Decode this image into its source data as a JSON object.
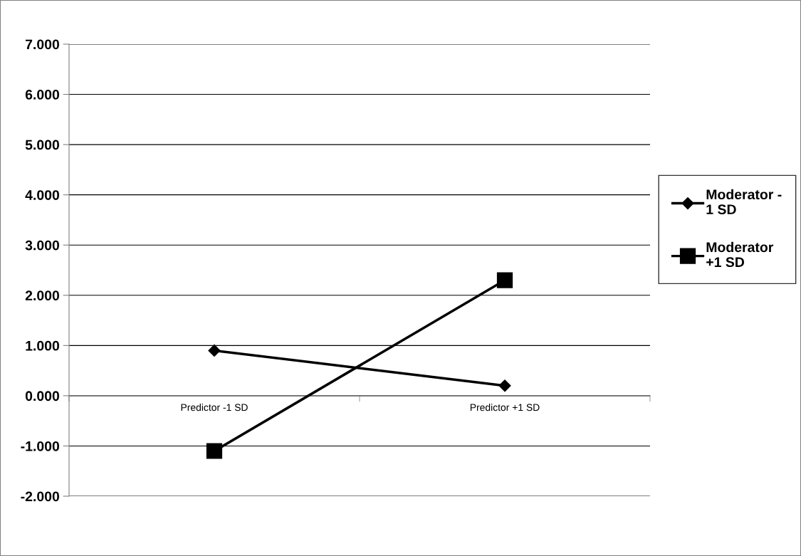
{
  "chart_data": {
    "type": "line",
    "categories": [
      "Predictor -1 SD",
      "Predictor +1 SD"
    ],
    "series": [
      {
        "name": "Moderator -\n1 SD",
        "color": "#000000",
        "values": [
          0.9,
          0.2
        ],
        "marker": "diamond"
      },
      {
        "name": "Moderator\n+1 SD",
        "color": "#000000",
        "values": [
          -1.1,
          2.3
        ],
        "marker": "square"
      }
    ],
    "ylim": [
      -2,
      7
    ],
    "yticks": [
      {
        "value": -2,
        "label": "-2.000"
      },
      {
        "value": -1,
        "label": "-1.000"
      },
      {
        "value": 0,
        "label": "0.000"
      },
      {
        "value": 1,
        "label": "1.000"
      },
      {
        "value": 2,
        "label": "2.000"
      },
      {
        "value": 3,
        "label": "3.000"
      },
      {
        "value": 4,
        "label": "4.000"
      },
      {
        "value": 5,
        "label": "5.000"
      },
      {
        "value": 6,
        "label": "6.000"
      },
      {
        "value": 7,
        "label": "7.000"
      }
    ],
    "grid": "y",
    "legend": "right",
    "line_style": "solid"
  }
}
